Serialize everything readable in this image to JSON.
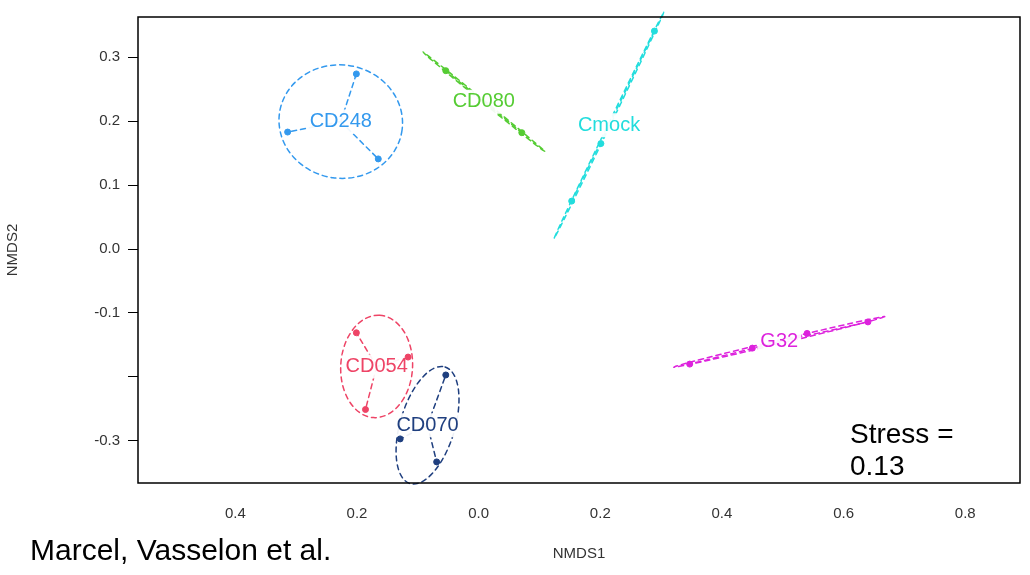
{
  "chart_data": {
    "type": "scatter",
    "xlabel": "NMDS1",
    "ylabel": "NMDS2",
    "xlim": [
      -0.56,
      0.89
    ],
    "ylim": [
      -0.366,
      0.363
    ],
    "xticks": [
      {
        "value": -0.4,
        "label": "0.4"
      },
      {
        "value": -0.2,
        "label": "0.2"
      },
      {
        "value": 0,
        "label": "0.0"
      },
      0.2,
      0.4,
      0.6,
      0.8
    ],
    "yticks": [
      0.3,
      0.2,
      0.1,
      {
        "value": 0,
        "label": "0.0"
      },
      -0.1,
      {
        "value": -0.2,
        "label": null
      },
      -0.3
    ],
    "grid": false,
    "legend": false,
    "marker": "circle",
    "line_style": "dashed",
    "series": [
      {
        "name": "CD248",
        "color": "#3399ee",
        "x": [
          -0.201,
          -0.314,
          -0.165
        ],
        "values": [
          0.274,
          0.183,
          0.141
        ]
      },
      {
        "name": "CD080",
        "color": "#55cc33",
        "x": [
          -0.054,
          0.071
        ],
        "values": [
          0.279,
          0.182
        ]
      },
      {
        "name": "Cmock",
        "color": "#22dddd",
        "x": [
          0.289,
          0.201,
          0.153
        ],
        "values": [
          0.341,
          0.165,
          0.075
        ]
      },
      {
        "name": "G32",
        "color": "#dd22dd",
        "x": [
          0.347,
          0.45,
          0.54,
          0.64
        ],
        "values": [
          -0.18,
          -0.155,
          -0.132,
          -0.114
        ]
      },
      {
        "name": "CD054",
        "color": "#ee4466",
        "x": [
          -0.201,
          -0.186,
          -0.116
        ],
        "values": [
          -0.131,
          -0.251,
          -0.169
        ]
      },
      {
        "name": "CD070",
        "color": "#1f3f7f",
        "x": [
          -0.054,
          -0.129,
          -0.069
        ],
        "values": [
          -0.197,
          -0.297,
          -0.333
        ]
      }
    ],
    "annotations": [
      "Stress = 0.13",
      "Marcel, Vasselon et al."
    ]
  }
}
